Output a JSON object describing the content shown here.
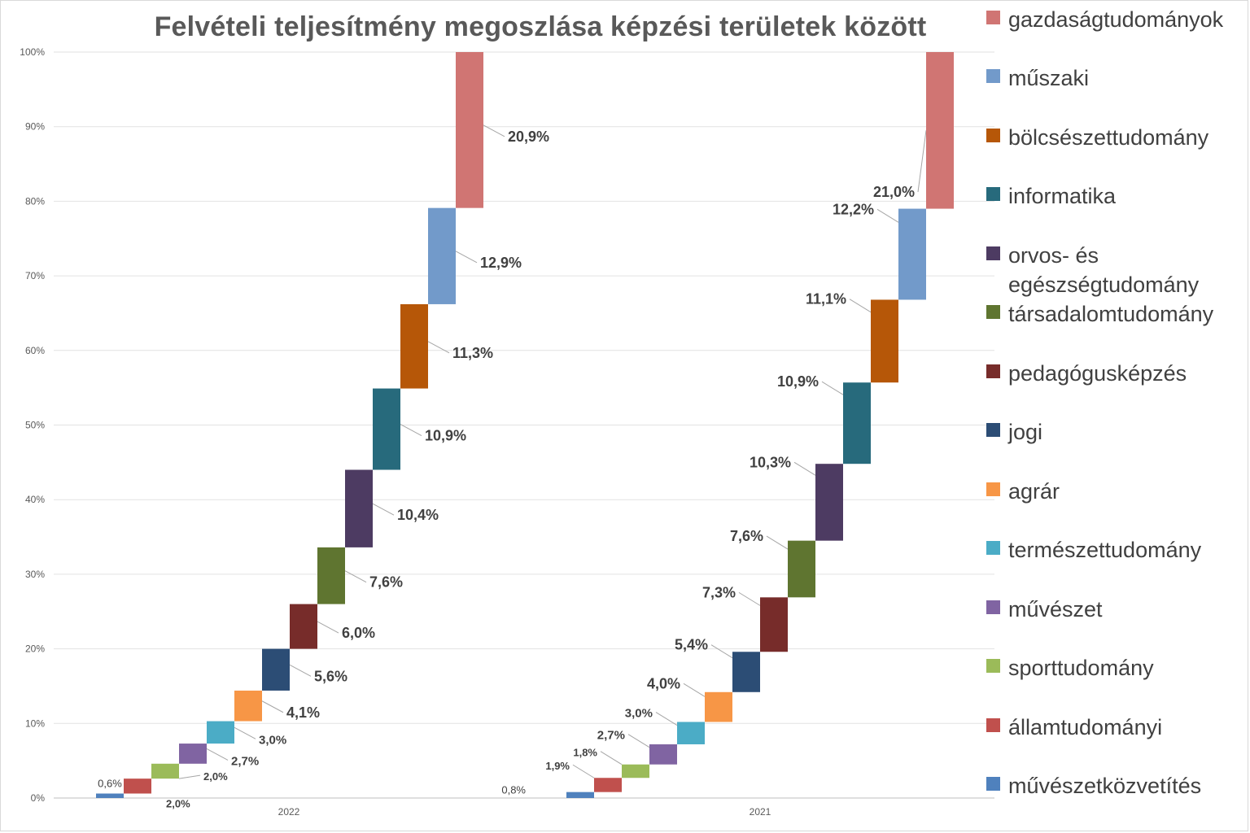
{
  "chart_data": {
    "type": "waterfall",
    "title": "Felvételi teljesítmény megoszlása képzési területek között",
    "y_axis": {
      "min": 0,
      "max": 100,
      "ticks": [
        "0%",
        "10%",
        "20%",
        "30%",
        "40%",
        "50%",
        "60%",
        "70%",
        "80%",
        "90%",
        "100%"
      ]
    },
    "grid": true,
    "legend_position": "right",
    "groups": [
      {
        "name": "2022",
        "values": [
          0.6,
          2.0,
          2.0,
          2.7,
          3.0,
          4.1,
          5.6,
          6.0,
          7.6,
          10.4,
          10.9,
          11.3,
          12.9,
          20.9
        ],
        "labels": [
          "0,6%",
          "2,0%",
          "2,0%",
          "2,7%",
          "3,0%",
          "4,1%",
          "5,6%",
          "6,0%",
          "7,6%",
          "10,4%",
          "10,9%",
          "11,3%",
          "12,9%",
          "20,9%"
        ]
      },
      {
        "name": "2021",
        "values": [
          0.8,
          1.9,
          1.8,
          2.7,
          3.0,
          4.0,
          5.4,
          7.3,
          7.6,
          10.3,
          10.9,
          11.1,
          12.2,
          21.0
        ],
        "labels": [
          "0,8%",
          "1,9%",
          "1,8%",
          "2,7%",
          "3,0%",
          "4,0%",
          "5,4%",
          "7,3%",
          "7,6%",
          "10,3%",
          "10,9%",
          "11,1%",
          "12,2%",
          "21,0%"
        ]
      }
    ],
    "categories": [
      {
        "name": "művészetközvetítés",
        "color": "#4f81bd"
      },
      {
        "name": "államtudományi",
        "color": "#c0504d"
      },
      {
        "name": "sporttudomány",
        "color": "#9bbb59"
      },
      {
        "name": "művészet",
        "color": "#8064a2"
      },
      {
        "name": "természettudomány",
        "color": "#4bacc6"
      },
      {
        "name": "agrár",
        "color": "#f79646"
      },
      {
        "name": "jogi",
        "color": "#2c4d75"
      },
      {
        "name": "pedagógusképzés",
        "color": "#772c2a"
      },
      {
        "name": "társadalomtudomány",
        "color": "#5f7530"
      },
      {
        "name": "orvos- és egészségtudomány",
        "color": "#4d3b62"
      },
      {
        "name": "informatika",
        "color": "#276a7c"
      },
      {
        "name": "bölcsészettudomány",
        "color": "#b65708"
      },
      {
        "name": "műszaki",
        "color": "#729aca"
      },
      {
        "name": "gazdaságtudományok",
        "color": "#d07573"
      }
    ]
  }
}
